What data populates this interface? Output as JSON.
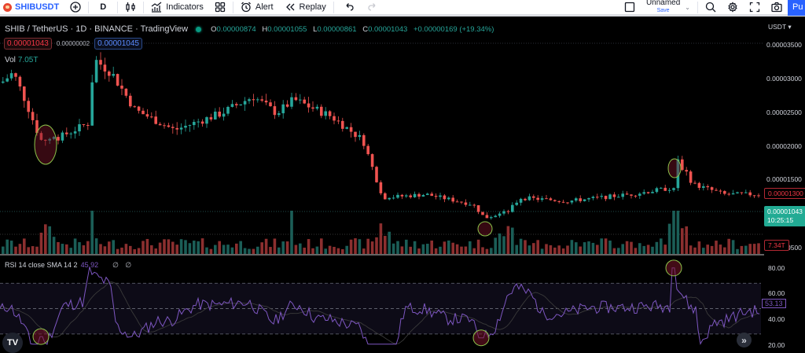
{
  "toolbar": {
    "symbol": "SHIBUSDT",
    "interval": "D",
    "indicators_label": "Indicators",
    "alert_label": "Alert",
    "replay_label": "Replay",
    "layout_name": "Unnamed",
    "save_label": "Save",
    "publish_label": "Pu"
  },
  "legend": {
    "title": "SHIB / TetherUS · 1D · BINANCE · TradingView",
    "open_label": "O",
    "open": "0.00000874",
    "high_label": "H",
    "high": "0.00001055",
    "low_label": "L",
    "low": "0.00000861",
    "close_label": "C",
    "close": "0.00001043",
    "change": "+0.00000169 (+19.34%)"
  },
  "order_panel": {
    "sell_price": "0.00001043",
    "spread": "0.00000002",
    "buy_price": "0.00001045"
  },
  "volume": {
    "label": "Vol",
    "value": "7.05T",
    "last_tag": "7.34T"
  },
  "price_axis": {
    "currency": "USDT ▾",
    "ticks": [
      "0.00003500",
      "0.00003000",
      "0.00002500",
      "0.00002000",
      "0.00001500",
      "0.00000500"
    ],
    "high_line_tag": "0.00001300",
    "last_price_tag": "0.00001043",
    "countdown": "10:25:15"
  },
  "rsi": {
    "label": "RSI 14 close SMA 14 2",
    "value": "45.92",
    "extra_values": "∅ ∅",
    "current_tag": "53.13",
    "ticks": [
      "80.00",
      "60.00",
      "40.00",
      "20.00"
    ]
  },
  "branding": {
    "logo": "TV"
  },
  "scroll_to_latest": "»",
  "colors": {
    "up": "#26a69a",
    "down": "#ef5350",
    "rsi_line": "#7e57c2",
    "accent": "#2962ff",
    "highlight_ellipse": "#8bc34a"
  },
  "chart_data": {
    "type": "candlestick",
    "title": "SHIB / TetherUS · 1D · BINANCE",
    "ylabel": "USDT",
    "ylim": [
      4e-06,
      3.6e-05
    ],
    "price_ticks": [
      3.5e-05,
      3e-05,
      2.5e-05,
      2e-05,
      1.5e-05,
      5e-06
    ],
    "last": {
      "open": 8.74e-06,
      "high": 1.055e-05,
      "low": 8.61e-06,
      "close": 1.043e-05,
      "change_pct": 19.34
    },
    "approx_close_path": [
      {
        "x": 0,
        "close": 2.95e-05
      },
      {
        "x": 15,
        "close": 3.1e-05
      },
      {
        "x": 30,
        "close": 2.7e-05
      },
      {
        "x": 50,
        "close": 2.1e-05
      },
      {
        "x": 75,
        "close": 2.15e-05
      },
      {
        "x": 110,
        "close": 2.35e-05
      },
      {
        "x": 118,
        "close": 3.3e-05
      },
      {
        "x": 140,
        "close": 3.1e-05
      },
      {
        "x": 170,
        "close": 2.55e-05
      },
      {
        "x": 220,
        "close": 2.25e-05
      },
      {
        "x": 280,
        "close": 2.5e-05
      },
      {
        "x": 320,
        "close": 2.75e-05
      },
      {
        "x": 350,
        "close": 2.5e-05
      },
      {
        "x": 372,
        "close": 2.7e-05
      },
      {
        "x": 420,
        "close": 2.45e-05
      },
      {
        "x": 460,
        "close": 2.1e-05
      },
      {
        "x": 485,
        "close": 1.25e-05
      },
      {
        "x": 540,
        "close": 1.3e-05
      },
      {
        "x": 600,
        "close": 1.15e-05
      },
      {
        "x": 615,
        "close": 9.5e-06
      },
      {
        "x": 645,
        "close": 1.05e-05
      },
      {
        "x": 660,
        "close": 1.25e-05
      },
      {
        "x": 720,
        "close": 1.2e-05
      },
      {
        "x": 800,
        "close": 1.3e-05
      },
      {
        "x": 855,
        "close": 1.4e-05
      },
      {
        "x": 860,
        "close": 1.8e-05
      },
      {
        "x": 880,
        "close": 1.45e-05
      },
      {
        "x": 920,
        "close": 1.3e-05
      },
      {
        "x": 965,
        "close": 1.3e-05
      }
    ],
    "volume_spikes_x": [
      115,
      370,
      857
    ],
    "rsi": {
      "period": 14,
      "smoothing": "SMA 14",
      "ylim": [
        20,
        85
      ],
      "bands": [
        30,
        50,
        70
      ],
      "current": 45.92,
      "last_tag": 53.13,
      "annotations": [
        {
          "x": 52,
          "value": 28,
          "note": "oversold circled"
        },
        {
          "x": 612,
          "value": 27,
          "note": "oversold circled"
        },
        {
          "x": 857,
          "value": 82,
          "note": "overbought circled"
        }
      ]
    }
  }
}
